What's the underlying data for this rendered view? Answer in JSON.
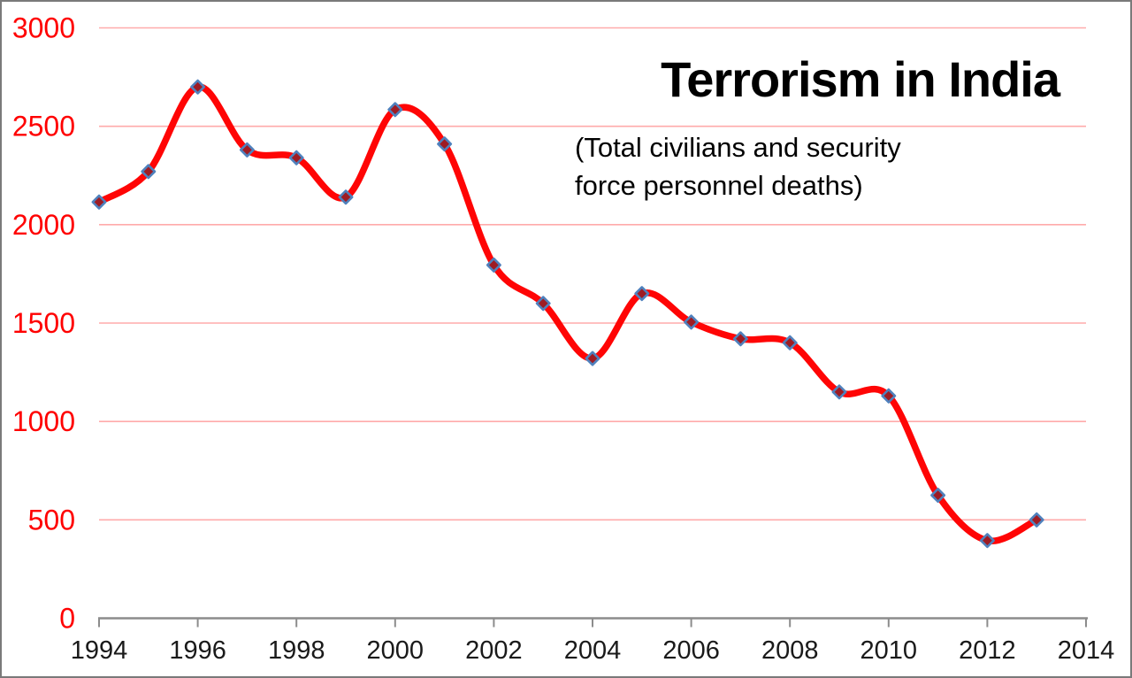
{
  "chart_data": {
    "type": "line",
    "title": "Terrorism in India",
    "subtitle": "(Total civilians and security\nforce personnel deaths)",
    "x": [
      1994,
      1995,
      1996,
      1997,
      1998,
      1999,
      2000,
      2001,
      2002,
      2003,
      2004,
      2005,
      2006,
      2007,
      2008,
      2009,
      2010,
      2011,
      2012,
      2013
    ],
    "values": [
      2115,
      2270,
      2700,
      2380,
      2340,
      2140,
      2585,
      2410,
      1795,
      1600,
      1320,
      1650,
      1505,
      1420,
      1400,
      1150,
      1130,
      625,
      395,
      500
    ],
    "x_ticks": [
      1994,
      1996,
      1998,
      2000,
      2002,
      2004,
      2006,
      2008,
      2010,
      2012,
      2014
    ],
    "y_ticks": [
      0,
      500,
      1000,
      1500,
      2000,
      2500,
      3000
    ],
    "xlim": [
      1994,
      2014
    ],
    "ylim": [
      0,
      3000
    ],
    "xlabel": "",
    "ylabel": "",
    "legend": "none",
    "grid": "horizontal",
    "line_smooth": true,
    "marker_shape": "diamond",
    "colors": {
      "line": "#ff0505",
      "gridline": "#ffabab",
      "y_tick_label": "#ff0000",
      "x_tick_label": "#1a1a1a",
      "axis_line": "#8c8c8c",
      "marker_fill": "#9e1c24",
      "marker_stroke": "#4f81bd",
      "title": "#000000",
      "frame_border": "#7a7a7a",
      "background": "#ffffff"
    }
  }
}
